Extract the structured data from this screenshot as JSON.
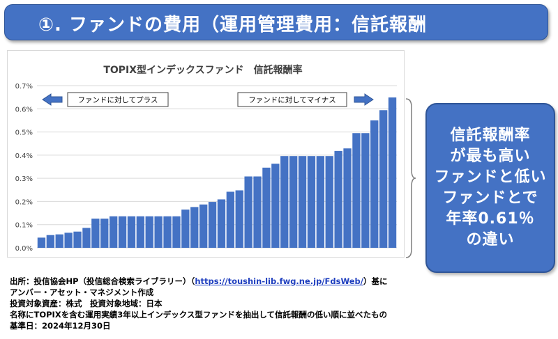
{
  "banner": {
    "title": "①. ファンドの費用（運用管理費用：信託報酬"
  },
  "callout": {
    "text": "信託報酬率\nが最も高い\nファンドと低い\nファンドとで\n年率0.61％\nの違い"
  },
  "annotations": {
    "left_label": "ファンドに対してプラス",
    "right_label": "ファンドに対してマイナス"
  },
  "notes": {
    "source_prefix": "出所：投信協会HP（投信総合検索ライブラリー）（",
    "source_url": "https://toushin-lib.fwg.ne.jp/FdsWeb/",
    "source_suffix": "）基に",
    "author": "アンバー・アセット・マネジメント作成",
    "scope": "投資対象資産：株式　投資対象地域：日本",
    "method": "名称にTOPIXを含む運用実績3年以上インデックス型ファンドを抽出して信託報酬の低い順に並べたもの",
    "date": "基準日：2024年12月30日"
  },
  "colors": {
    "bar": "#4472c4",
    "banner": "#4472c4",
    "arrow": "#4472c4"
  },
  "chart_data": {
    "type": "bar",
    "title": "TOPIX型インデックスファンド　信託報酬率",
    "xlabel": "",
    "ylabel": "",
    "ylim": [
      0,
      0.7
    ],
    "yticks": [
      "0.0%",
      "0.1%",
      "0.2%",
      "0.3%",
      "0.4%",
      "0.5%",
      "0.6%",
      "0.7%"
    ],
    "grid": true,
    "values": [
      0.044,
      0.055,
      0.058,
      0.065,
      0.07,
      0.086,
      0.126,
      0.126,
      0.136,
      0.136,
      0.136,
      0.136,
      0.136,
      0.136,
      0.136,
      0.136,
      0.165,
      0.176,
      0.187,
      0.198,
      0.209,
      0.242,
      0.248,
      0.308,
      0.308,
      0.346,
      0.363,
      0.396,
      0.396,
      0.396,
      0.396,
      0.396,
      0.396,
      0.418,
      0.429,
      0.495,
      0.495,
      0.55,
      0.594,
      0.649
    ]
  }
}
